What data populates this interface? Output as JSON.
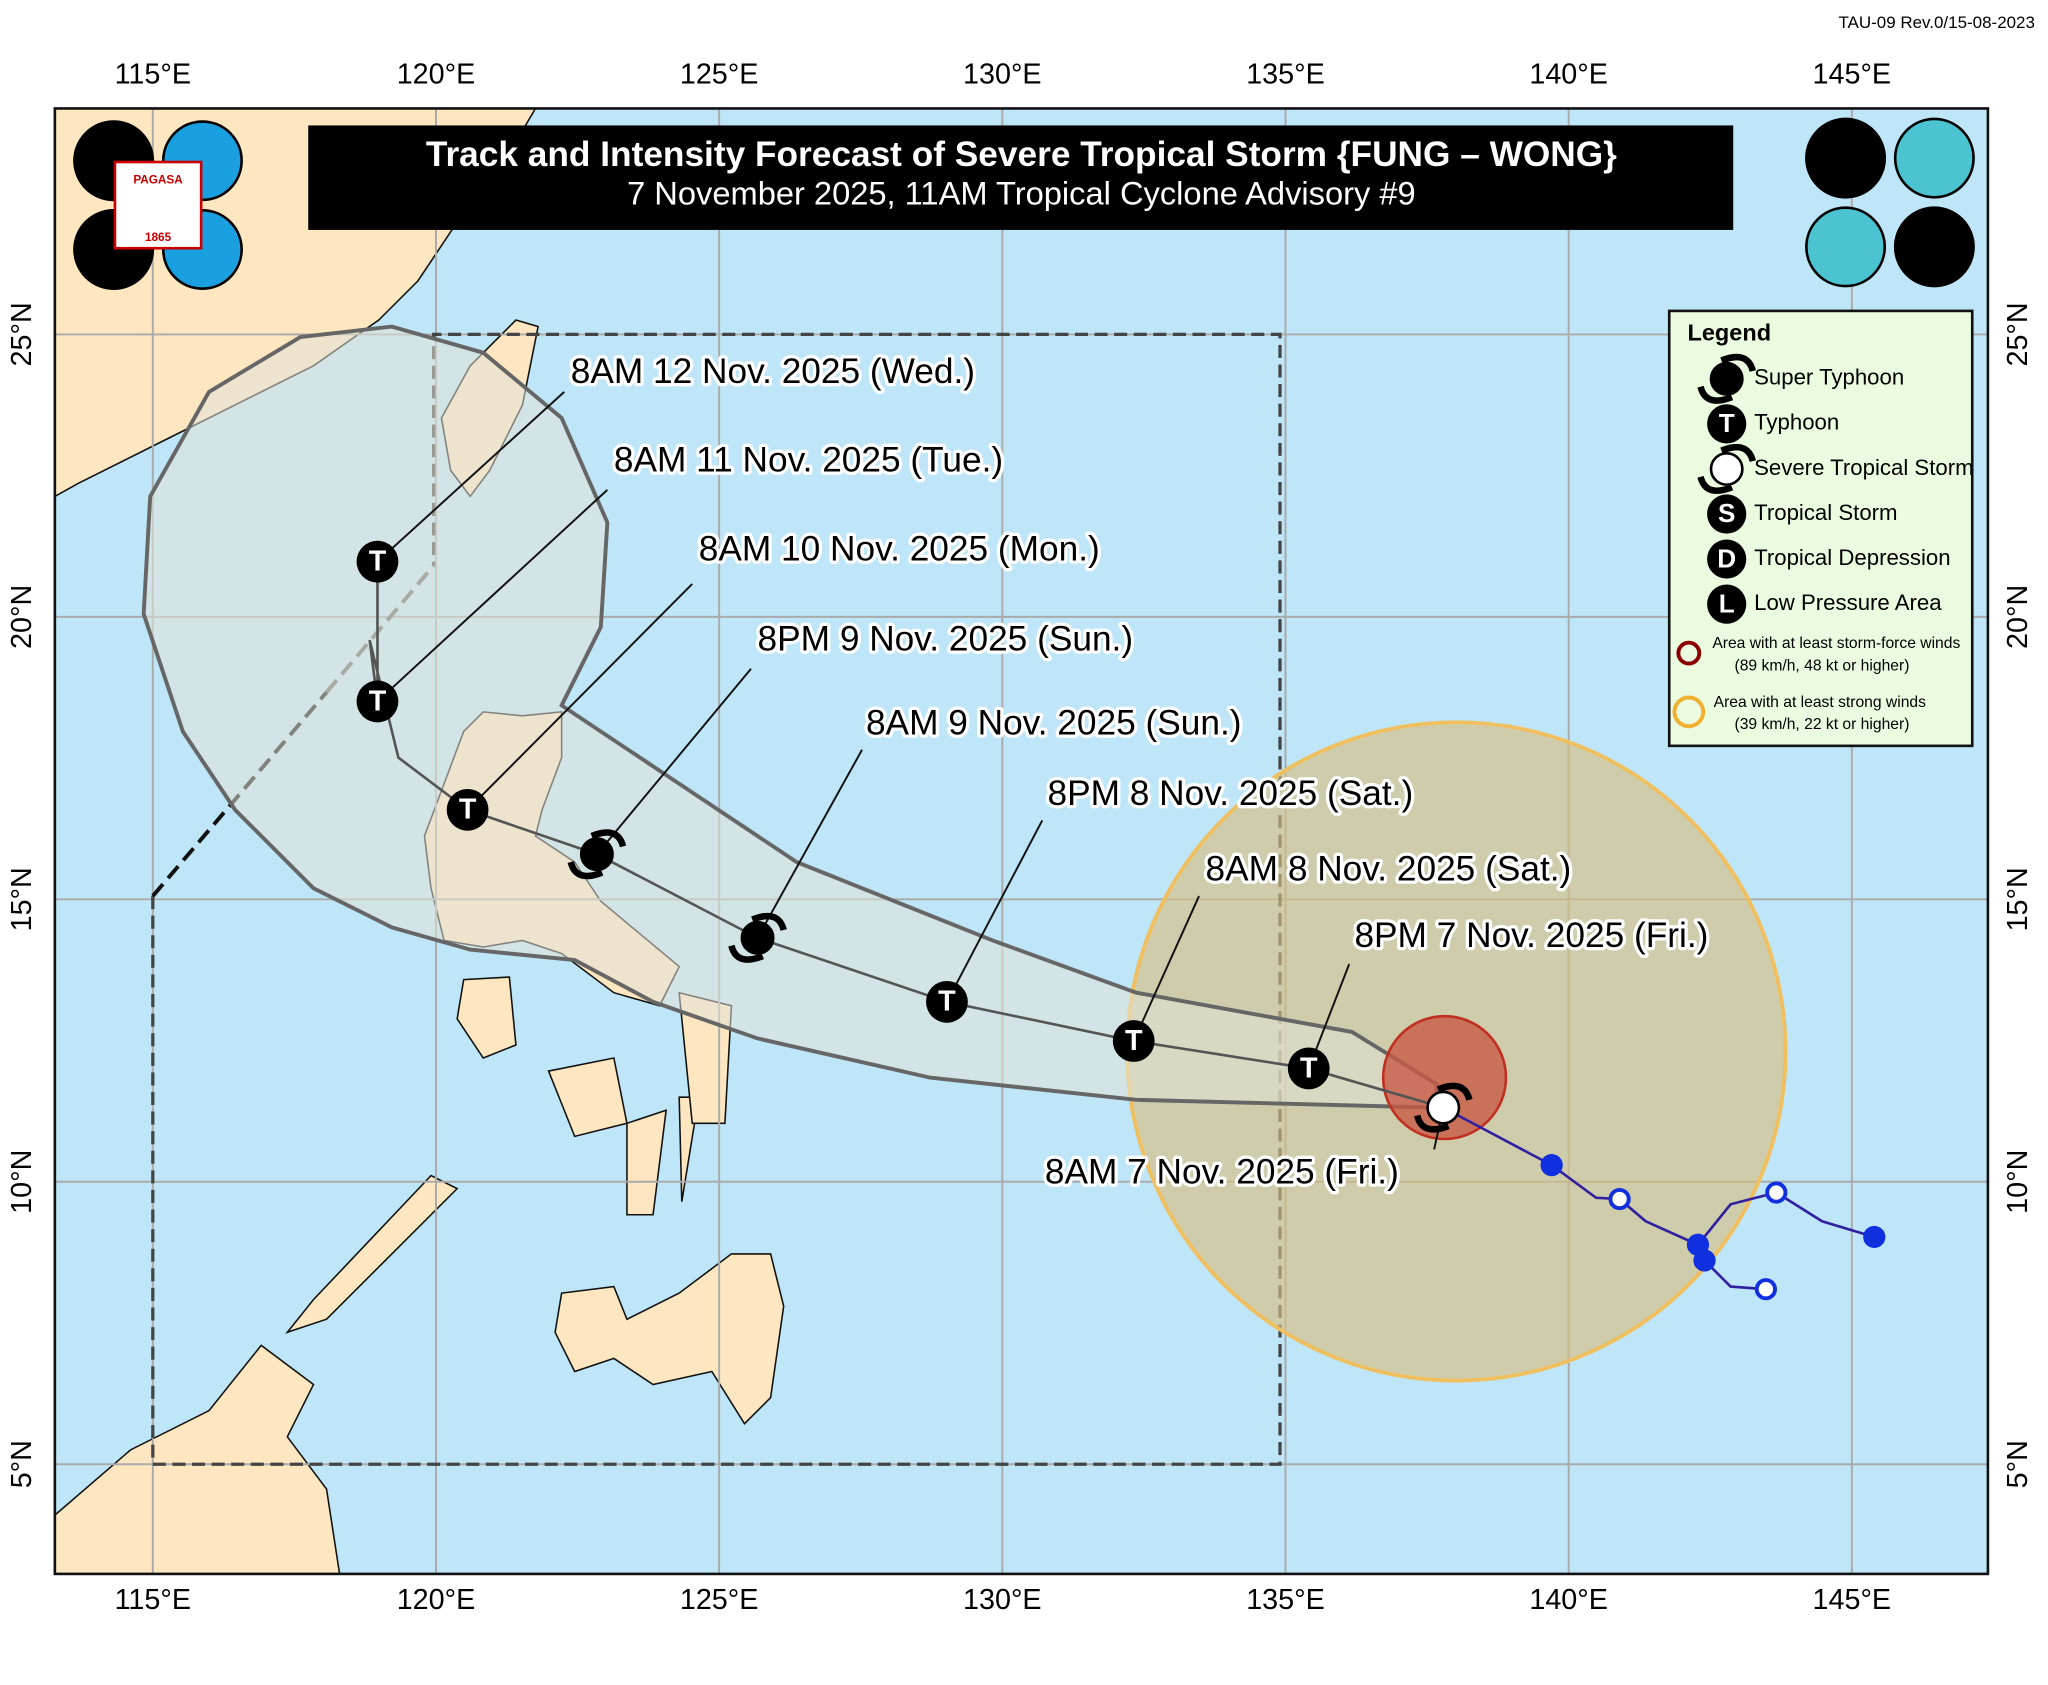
{
  "header": {
    "revision": "TAU-09 Rev.0/15-08-2023",
    "title": "Track and Intensity Forecast of Severe Tropical Storm {FUNG – WONG}",
    "subtitle": "7 November 2025, 11AM Tropical Cyclone Advisory #9"
  },
  "logo": {
    "name": "PAGASA",
    "year": "1865"
  },
  "map": {
    "longitude_labels": [
      "115°E",
      "120°E",
      "125°E",
      "130°E",
      "135°E",
      "140°E",
      "145°E"
    ],
    "latitude_labels": [
      "25°N",
      "20°N",
      "15°N",
      "10°N",
      "5°N"
    ],
    "forecast_labels": [
      "8AM 12 Nov. 2025 (Wed.)",
      "8AM 11 Nov. 2025 (Tue.)",
      "8AM 10 Nov. 2025 (Mon.)",
      "8PM 9 Nov. 2025 (Sun.)",
      "8AM 9 Nov. 2025 (Sun.)",
      "8PM 8 Nov. 2025 (Sat.)",
      "8AM 8 Nov. 2025 (Sat.)",
      "8PM 7 Nov. 2025 (Fri.)",
      "8AM 7 Nov. 2025 (Fri.)"
    ]
  },
  "legend": {
    "title": "Legend",
    "items": [
      {
        "label": "Super Typhoon"
      },
      {
        "symbol": "T",
        "label": "Typhoon"
      },
      {
        "label": "Severe Tropical Storm"
      },
      {
        "symbol": "S",
        "label": "Tropical Storm"
      },
      {
        "symbol": "D",
        "label": "Tropical Depression"
      },
      {
        "symbol": "L",
        "label": "Low Pressure Area"
      }
    ],
    "areas": [
      {
        "label": "Area with at least storm-force winds",
        "note": "(89 km/h, 48 kt or higher)"
      },
      {
        "label": "Area with at least strong winds",
        "note": "(39 km/h, 22 kt or higher)"
      }
    ]
  }
}
